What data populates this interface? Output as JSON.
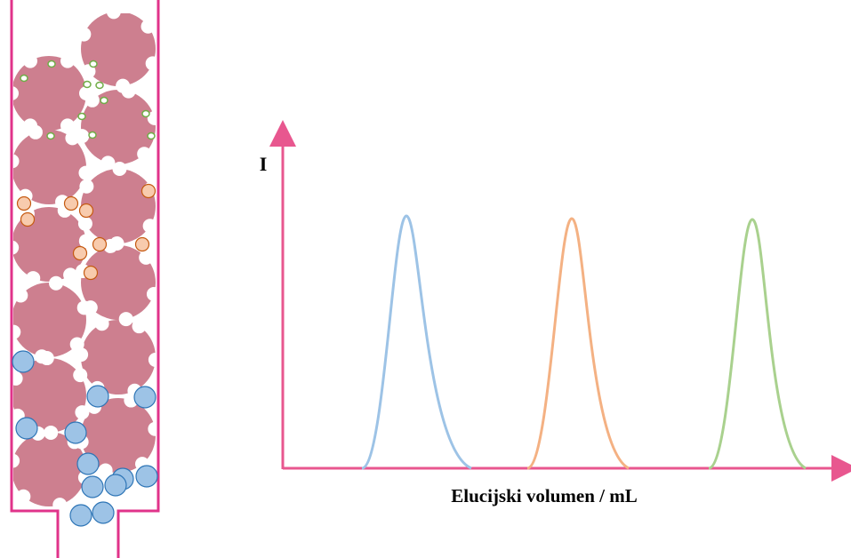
{
  "y_axis_label": "I",
  "x_axis_label": "Elucijski volumen / mL"
}
